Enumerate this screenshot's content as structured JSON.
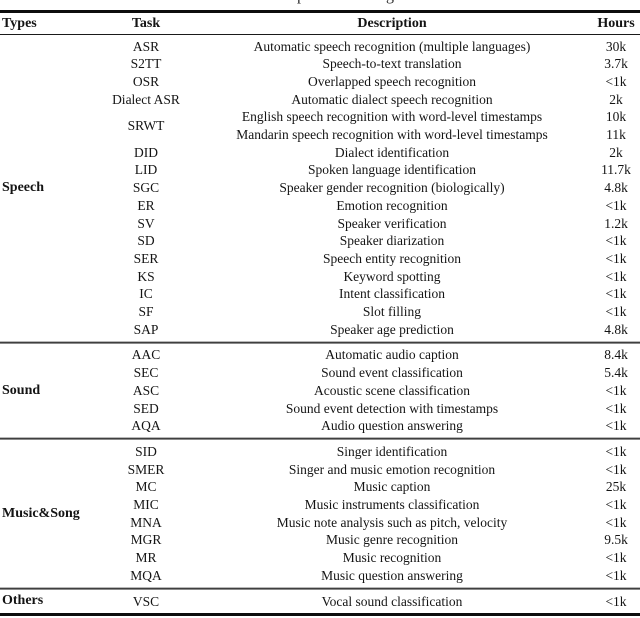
{
  "caption": {
    "left_fragment": "p",
    "right_fragment": "g"
  },
  "colors": {
    "background": "#ffffff",
    "text": "#141414",
    "heavy_rule": "#0d0d0d",
    "section_rule": "#3f3f3f"
  },
  "table": {
    "columns": {
      "types": "Types",
      "task": "Task",
      "description": "Description",
      "hours": "Hours"
    },
    "sections": [
      {
        "type": "Speech",
        "rows": [
          {
            "task": "ASR",
            "lines": [
              {
                "description": "Automatic speech recognition (multiple languages)",
                "hours": "30k"
              }
            ]
          },
          {
            "task": "S2TT",
            "lines": [
              {
                "description": "Speech-to-text translation",
                "hours": "3.7k"
              }
            ]
          },
          {
            "task": "OSR",
            "lines": [
              {
                "description": "Overlapped speech recognition",
                "hours": "<1k"
              }
            ]
          },
          {
            "task": "Dialect ASR",
            "lines": [
              {
                "description": "Automatic dialect speech recognition",
                "hours": "2k"
              }
            ]
          },
          {
            "task": "SRWT",
            "lines": [
              {
                "description": "English speech recognition with word-level timestamps",
                "hours": "10k"
              },
              {
                "description": "Mandarin speech recognition with word-level timestamps",
                "hours": "11k"
              }
            ]
          },
          {
            "task": "DID",
            "lines": [
              {
                "description": "Dialect identification",
                "hours": "2k"
              }
            ]
          },
          {
            "task": "LID",
            "lines": [
              {
                "description": "Spoken language identification",
                "hours": "11.7k"
              }
            ]
          },
          {
            "task": "SGC",
            "lines": [
              {
                "description": "Speaker gender recognition (biologically)",
                "hours": "4.8k"
              }
            ]
          },
          {
            "task": "ER",
            "lines": [
              {
                "description": "Emotion recognition",
                "hours": "<1k"
              }
            ]
          },
          {
            "task": "SV",
            "lines": [
              {
                "description": "Speaker verification",
                "hours": "1.2k"
              }
            ]
          },
          {
            "task": "SD",
            "lines": [
              {
                "description": "Speaker diarization",
                "hours": "<1k"
              }
            ]
          },
          {
            "task": "SER",
            "lines": [
              {
                "description": "Speech entity recognition",
                "hours": "<1k"
              }
            ]
          },
          {
            "task": "KS",
            "lines": [
              {
                "description": "Keyword spotting",
                "hours": "<1k"
              }
            ]
          },
          {
            "task": "IC",
            "lines": [
              {
                "description": "Intent classification",
                "hours": "<1k"
              }
            ]
          },
          {
            "task": "SF",
            "lines": [
              {
                "description": "Slot filling",
                "hours": "<1k"
              }
            ]
          },
          {
            "task": "SAP",
            "lines": [
              {
                "description": "Speaker age prediction",
                "hours": "4.8k"
              }
            ]
          }
        ]
      },
      {
        "type": "Sound",
        "rows": [
          {
            "task": "AAC",
            "lines": [
              {
                "description": "Automatic audio caption",
                "hours": "8.4k"
              }
            ]
          },
          {
            "task": "SEC",
            "lines": [
              {
                "description": "Sound event classification",
                "hours": "5.4k"
              }
            ]
          },
          {
            "task": "ASC",
            "lines": [
              {
                "description": "Acoustic scene classification",
                "hours": "<1k"
              }
            ]
          },
          {
            "task": "SED",
            "lines": [
              {
                "description": "Sound event detection with timestamps",
                "hours": "<1k"
              }
            ]
          },
          {
            "task": "AQA",
            "lines": [
              {
                "description": "Audio question answering",
                "hours": "<1k"
              }
            ]
          }
        ]
      },
      {
        "type": "Music&Song",
        "rows": [
          {
            "task": "SID",
            "lines": [
              {
                "description": "Singer identification",
                "hours": "<1k"
              }
            ]
          },
          {
            "task": "SMER",
            "lines": [
              {
                "description": "Singer and music emotion recognition",
                "hours": "<1k"
              }
            ]
          },
          {
            "task": "MC",
            "lines": [
              {
                "description": "Music caption",
                "hours": "25k"
              }
            ]
          },
          {
            "task": "MIC",
            "lines": [
              {
                "description": "Music instruments classification",
                "hours": "<1k"
              }
            ]
          },
          {
            "task": "MNA",
            "lines": [
              {
                "description": "Music note analysis such as pitch, velocity",
                "hours": "<1k"
              }
            ]
          },
          {
            "task": "MGR",
            "lines": [
              {
                "description": "Music genre recognition",
                "hours": "9.5k"
              }
            ]
          },
          {
            "task": "MR",
            "lines": [
              {
                "description": "Music recognition",
                "hours": "<1k"
              }
            ]
          },
          {
            "task": "MQA",
            "lines": [
              {
                "description": "Music question answering",
                "hours": "<1k"
              }
            ]
          }
        ]
      },
      {
        "type": "Others",
        "rows": [
          {
            "task": "VSC",
            "lines": [
              {
                "description": "Vocal sound classification",
                "hours": "<1k"
              }
            ]
          }
        ]
      }
    ]
  }
}
